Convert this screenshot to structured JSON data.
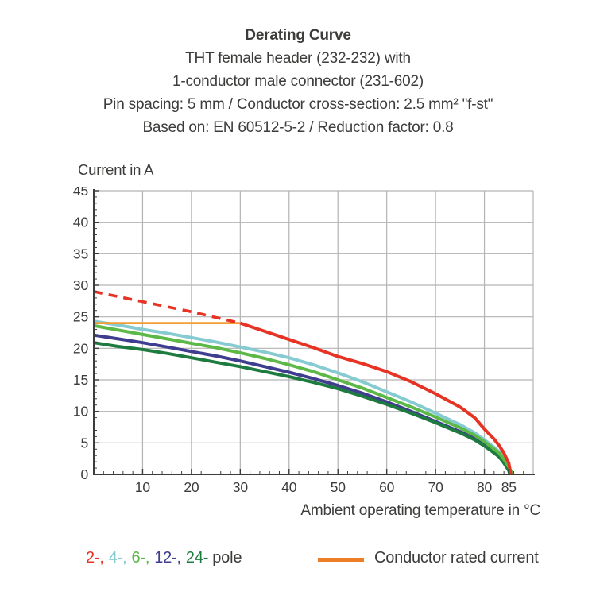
{
  "title_block": {
    "title": "Derating Curve",
    "subtitle_lines": [
      "THT female header (232-232) with",
      "1-conductor male connector (231-602)",
      "Pin spacing: 5 mm / Conductor cross-section: 2.5 mm² \"f-st\"",
      "Based on: EN 60512-5-2 / Reduction factor: 0.8"
    ]
  },
  "chart_data": {
    "type": "line",
    "title": "Derating Curve",
    "xlabel": "Ambient operating temperature in °C",
    "ylabel": "Current in A",
    "xlim": [
      0,
      90
    ],
    "ylim": [
      0,
      45
    ],
    "x_major_ticks": [
      10,
      20,
      30,
      40,
      50,
      60,
      70,
      80,
      85
    ],
    "x_minor_step": 2,
    "y_major_step": 5,
    "y_minor_step": 1,
    "grid": {
      "x_step": 10,
      "y_step": 5,
      "color": "#b3b3b3",
      "on": true
    },
    "axis_color": "#3c3c3b",
    "legend_position": "bottom",
    "series": [
      {
        "name": "12-pole",
        "color": "#3e3d8f",
        "width": 4,
        "dash": null,
        "points": [
          [
            0,
            22.1
          ],
          [
            5,
            21.5
          ],
          [
            10,
            20.9
          ],
          [
            15,
            20.2
          ],
          [
            20,
            19.5
          ],
          [
            25,
            18.8
          ],
          [
            30,
            18.0
          ],
          [
            35,
            17.1
          ],
          [
            40,
            16.2
          ],
          [
            45,
            15.2
          ],
          [
            50,
            14.1
          ],
          [
            55,
            12.9
          ],
          [
            60,
            11.5
          ],
          [
            65,
            10.0
          ],
          [
            70,
            8.4
          ],
          [
            75,
            6.8
          ],
          [
            78,
            5.7
          ],
          [
            80,
            4.7
          ],
          [
            82,
            3.6
          ],
          [
            83,
            3.0
          ],
          [
            84,
            2.0
          ],
          [
            85,
            0.8
          ],
          [
            85.3,
            0
          ]
        ]
      },
      {
        "name": "24-pole",
        "color": "#1e7b3f",
        "width": 4,
        "dash": null,
        "points": [
          [
            0,
            20.9
          ],
          [
            5,
            20.3
          ],
          [
            10,
            19.8
          ],
          [
            15,
            19.2
          ],
          [
            20,
            18.5
          ],
          [
            25,
            17.8
          ],
          [
            30,
            17.1
          ],
          [
            35,
            16.3
          ],
          [
            40,
            15.5
          ],
          [
            45,
            14.6
          ],
          [
            50,
            13.6
          ],
          [
            55,
            12.4
          ],
          [
            60,
            11.1
          ],
          [
            65,
            9.7
          ],
          [
            70,
            8.2
          ],
          [
            75,
            6.6
          ],
          [
            78,
            5.5
          ],
          [
            80,
            4.5
          ],
          [
            82,
            3.4
          ],
          [
            83,
            2.8
          ],
          [
            84,
            1.8
          ],
          [
            85,
            0.6
          ],
          [
            85.2,
            0
          ]
        ]
      },
      {
        "name": "4-pole",
        "color": "#85cbd1",
        "width": 4,
        "dash": null,
        "points": [
          [
            0,
            24.3
          ],
          [
            5,
            23.7
          ],
          [
            10,
            23.0
          ],
          [
            15,
            22.4
          ],
          [
            20,
            21.7
          ],
          [
            25,
            21.0
          ],
          [
            30,
            20.2
          ],
          [
            35,
            19.4
          ],
          [
            40,
            18.5
          ],
          [
            45,
            17.4
          ],
          [
            50,
            16.1
          ],
          [
            55,
            14.7
          ],
          [
            60,
            13.1
          ],
          [
            65,
            11.5
          ],
          [
            70,
            9.7
          ],
          [
            75,
            7.9
          ],
          [
            78,
            6.6
          ],
          [
            80,
            5.5
          ],
          [
            82,
            4.3
          ],
          [
            83,
            3.6
          ],
          [
            84,
            2.6
          ],
          [
            85,
            1.4
          ],
          [
            85.6,
            0
          ]
        ]
      },
      {
        "name": "6-pole",
        "color": "#5cb947",
        "width": 4,
        "dash": null,
        "points": [
          [
            0,
            23.6
          ],
          [
            5,
            22.9
          ],
          [
            10,
            22.2
          ],
          [
            15,
            21.5
          ],
          [
            20,
            20.8
          ],
          [
            25,
            20.1
          ],
          [
            30,
            19.3
          ],
          [
            35,
            18.4
          ],
          [
            40,
            17.4
          ],
          [
            45,
            16.3
          ],
          [
            50,
            15.0
          ],
          [
            55,
            13.7
          ],
          [
            60,
            12.2
          ],
          [
            65,
            10.7
          ],
          [
            70,
            9.1
          ],
          [
            75,
            7.4
          ],
          [
            78,
            6.2
          ],
          [
            80,
            5.2
          ],
          [
            82,
            4.0
          ],
          [
            83,
            3.4
          ],
          [
            84,
            2.4
          ],
          [
            85,
            1.2
          ],
          [
            85.8,
            0
          ]
        ]
      },
      {
        "name": "Conductor rated current",
        "color": "#f49d35",
        "width": 2.8,
        "dash": null,
        "points": [
          [
            0,
            24
          ],
          [
            30,
            24
          ]
        ]
      },
      {
        "name": "2-pole (no reduction, dashed)",
        "color": "#e63323",
        "width": 3.6,
        "dash": "11 8",
        "points": [
          [
            0,
            29
          ],
          [
            5,
            28.2
          ],
          [
            10,
            27.4
          ],
          [
            15,
            26.6
          ],
          [
            20,
            25.8
          ],
          [
            25,
            24.9
          ],
          [
            30,
            24
          ]
        ]
      },
      {
        "name": "2-pole",
        "color": "#e63323",
        "width": 4,
        "dash": null,
        "points": [
          [
            30,
            24
          ],
          [
            35,
            22.7
          ],
          [
            40,
            21.4
          ],
          [
            45,
            20.1
          ],
          [
            50,
            18.7
          ],
          [
            55,
            17.6
          ],
          [
            60,
            16.3
          ],
          [
            65,
            14.7
          ],
          [
            70,
            12.8
          ],
          [
            75,
            10.7
          ],
          [
            78,
            9.0
          ],
          [
            80,
            7.2
          ],
          [
            82,
            5.6
          ],
          [
            83,
            4.6
          ],
          [
            84,
            3.4
          ],
          [
            85,
            1.8
          ],
          [
            85.4,
            0
          ]
        ]
      }
    ]
  },
  "legend": {
    "pole_items": [
      {
        "label": "2-,",
        "color": "#e63323"
      },
      {
        "label": "4-,",
        "color": "#85cbd1"
      },
      {
        "label": "6-,",
        "color": "#5cb947"
      },
      {
        "label": "12-,",
        "color": "#3e3d8f"
      },
      {
        "label": "24-",
        "color": "#1e7b3f"
      }
    ],
    "pole_suffix": "pole",
    "rated": {
      "label": "Conductor rated current",
      "swatch_color": "#ed7d26"
    }
  }
}
